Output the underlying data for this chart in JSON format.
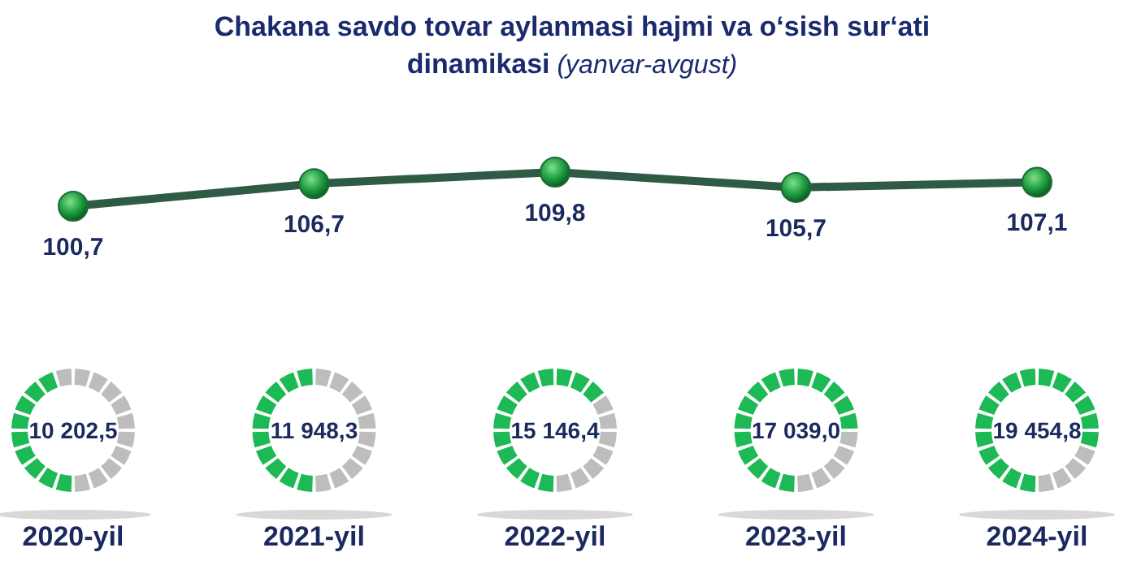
{
  "chart_data": [
    {
      "type": "line",
      "title": "Chakana savdo tovar aylanmasi hajmi va o‘sish sur‘ati dinamikasi",
      "subtitle": "(yanvar-avgust)",
      "categories": [
        "2020-yil",
        "2021-yil",
        "2022-yil",
        "2023-yil",
        "2024-yil"
      ],
      "values": [
        100.7,
        106.7,
        109.8,
        105.7,
        107.1
      ],
      "value_labels": [
        "100,7",
        "106,7",
        "109,8",
        "105,7",
        "107,1"
      ],
      "color": "#2f5a45",
      "marker": "circle"
    },
    {
      "type": "other",
      "values": [
        10202.5,
        11948.3,
        15146.4,
        17039.0,
        19454.8
      ],
      "value_labels": [
        "10 202,5",
        "11 948,3",
        "15 146,4",
        "17 039,0",
        "19 454,8"
      ],
      "color": "#1db954"
    }
  ]
}
